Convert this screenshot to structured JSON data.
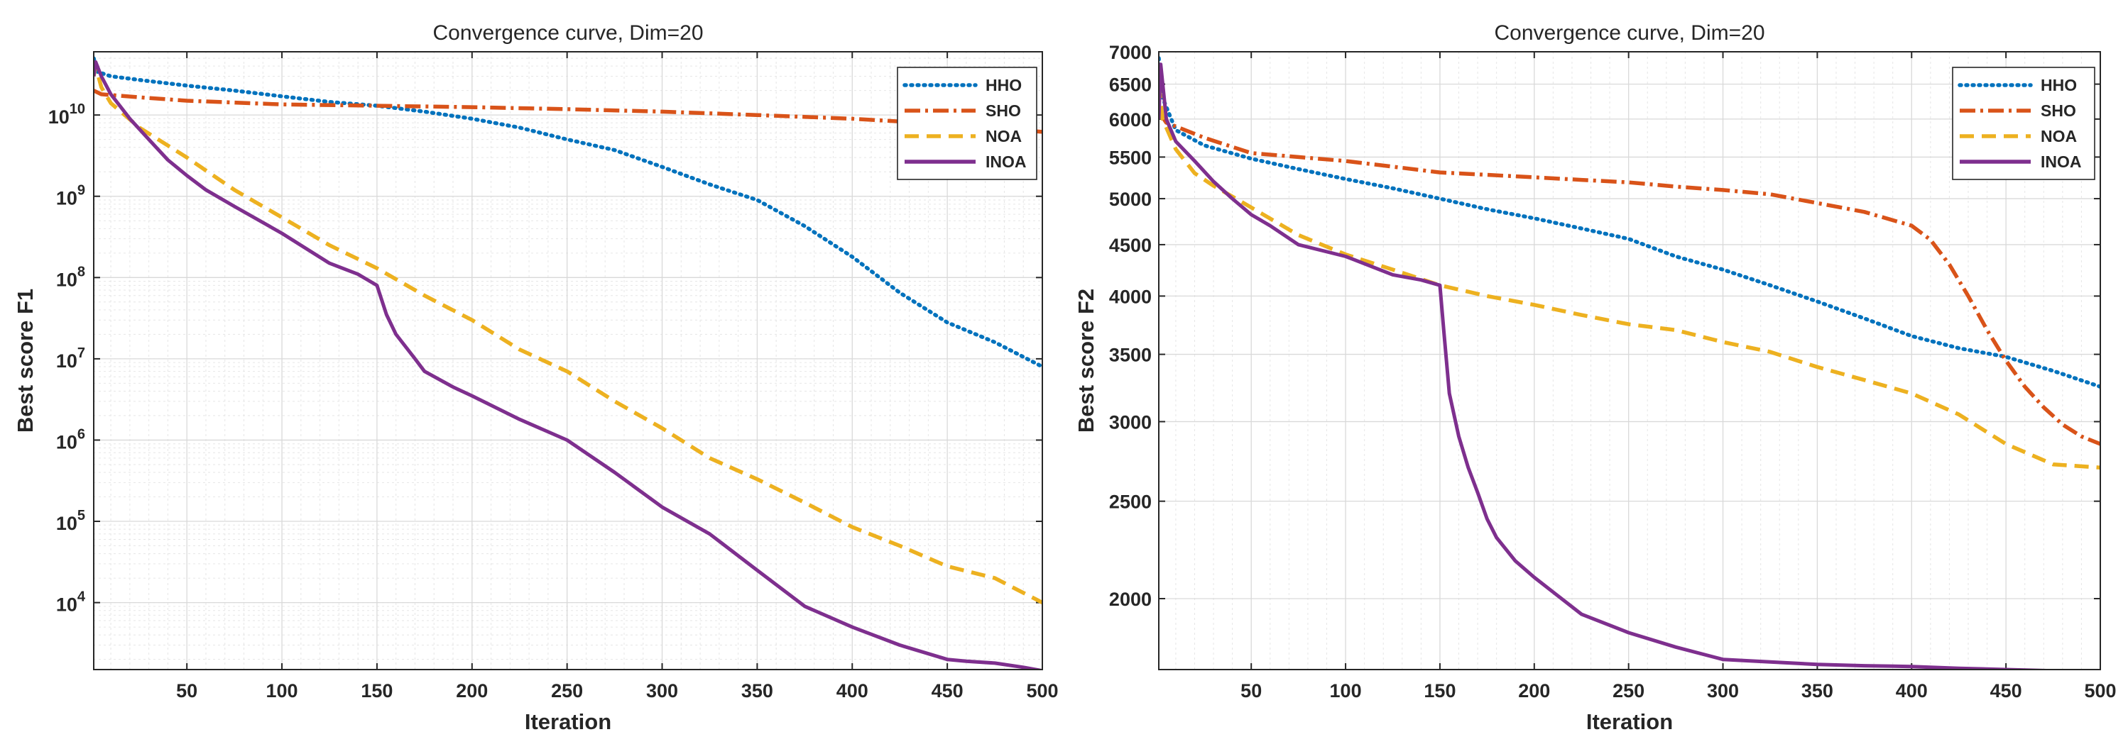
{
  "chart_data": [
    {
      "type": "line",
      "title": "Convergence curve, Dim=20",
      "xlabel": "Iteration",
      "ylabel": "Best score F1",
      "yscale": "log",
      "xlim": [
        1,
        500
      ],
      "ylim": [
        1500,
        60000000000
      ],
      "xticks": [
        50,
        100,
        150,
        200,
        250,
        300,
        350,
        400,
        450,
        500
      ],
      "xtick_labels": [
        "50",
        "100",
        "150",
        "200",
        "250",
        "300",
        "350",
        "400",
        "450",
        "500"
      ],
      "yticks": [
        10000,
        100000,
        1000000,
        10000000,
        100000000,
        1000000000,
        10000000000
      ],
      "ytick_labels": [
        {
          "base": "10",
          "exp": "4"
        },
        {
          "base": "10",
          "exp": "5"
        },
        {
          "base": "10",
          "exp": "6"
        },
        {
          "base": "10",
          "exp": "7"
        },
        {
          "base": "10",
          "exp": "8"
        },
        {
          "base": "10",
          "exp": "9"
        },
        {
          "base": "10",
          "exp": "10"
        }
      ],
      "grid": true,
      "legend_position": "top-right",
      "series": [
        {
          "name": "HHO",
          "color": "#0072BD",
          "style": "dotted",
          "x": [
            1,
            3,
            10,
            25,
            50,
            75,
            100,
            125,
            150,
            175,
            200,
            225,
            250,
            275,
            300,
            325,
            350,
            375,
            400,
            425,
            450,
            475,
            500
          ],
          "y": [
            50000000000,
            34000000000,
            30000000000,
            27000000000,
            23000000000,
            20000000000,
            17000000000,
            14500000000,
            13000000000,
            11000000000,
            9000000000,
            7000000000,
            5000000000,
            3700000000,
            2300000000,
            1400000000,
            900000000,
            430000000,
            180000000,
            65000000,
            28000000,
            16000000,
            8000000
          ]
        },
        {
          "name": "SHO",
          "color": "#D95319",
          "style": "dashdot",
          "x": [
            1,
            5,
            25,
            50,
            100,
            150,
            200,
            250,
            300,
            350,
            400,
            450,
            500
          ],
          "y": [
            20000000000,
            18000000000,
            16500000000,
            15000000000,
            13500000000,
            13000000000,
            12500000000,
            11800000000,
            11000000000,
            10000000000,
            9000000000,
            7700000000,
            6200000000
          ]
        },
        {
          "name": "NOA",
          "color": "#EDB120",
          "style": "dashed",
          "x": [
            1,
            2,
            5,
            10,
            25,
            50,
            75,
            100,
            125,
            150,
            175,
            200,
            225,
            250,
            275,
            300,
            325,
            350,
            375,
            400,
            425,
            450,
            475,
            500
          ],
          "y": [
            30000000000,
            40000000000,
            22000000000,
            14000000000,
            7000000000,
            3000000000,
            1200000000,
            550000000,
            250000000,
            130000000,
            60000000,
            30000000,
            13000000,
            7000000,
            3000000,
            1400000,
            600000,
            330000,
            170000,
            85000,
            50000,
            28000,
            20000,
            10000
          ]
        },
        {
          "name": "INOA",
          "color": "#7E2F8E",
          "style": "solid",
          "x": [
            1,
            2,
            5,
            10,
            20,
            30,
            40,
            50,
            60,
            75,
            100,
            125,
            140,
            150,
            155,
            160,
            170,
            175,
            190,
            200,
            225,
            250,
            275,
            300,
            325,
            350,
            375,
            400,
            425,
            450,
            460,
            475,
            490,
            500
          ],
          "y": [
            30000000000,
            45000000000,
            30000000000,
            18000000000,
            9000000000,
            5000000000,
            2800000000,
            1800000000,
            1200000000,
            750000000,
            350000000,
            150000000,
            110000000,
            80000000,
            35000000,
            20000000,
            10000000,
            7000000,
            4500000,
            3500000,
            1800000,
            1000000,
            400000,
            150000,
            70000,
            25000,
            9000,
            5000,
            3000,
            2000,
            1900,
            1800,
            1600,
            1450
          ]
        }
      ]
    },
    {
      "type": "line",
      "title": "Convergence curve, Dim=20",
      "xlabel": "Iteration",
      "ylabel": "Best score F2",
      "yscale": "log",
      "xlim": [
        1,
        500
      ],
      "ylim": [
        1700,
        7000
      ],
      "xticks": [
        50,
        100,
        150,
        200,
        250,
        300,
        350,
        400,
        450,
        500
      ],
      "xtick_labels": [
        "50",
        "100",
        "150",
        "200",
        "250",
        "300",
        "350",
        "400",
        "450",
        "500"
      ],
      "yticks": [
        2000,
        2500,
        3000,
        3500,
        4000,
        4500,
        5000,
        5500,
        6000,
        6500,
        7000
      ],
      "ytick_labels": [
        "2000",
        "2500",
        "3000",
        "3500",
        "4000",
        "4500",
        "5000",
        "5500",
        "6000",
        "6500",
        "7000"
      ],
      "grid": true,
      "legend_position": "top-right",
      "series": [
        {
          "name": "HHO",
          "color": "#0072BD",
          "style": "dotted",
          "x": [
            1,
            3,
            10,
            25,
            50,
            75,
            100,
            125,
            150,
            175,
            200,
            225,
            250,
            275,
            300,
            325,
            350,
            375,
            400,
            425,
            450,
            475,
            500
          ],
          "y": [
            6900,
            6300,
            5850,
            5650,
            5480,
            5350,
            5230,
            5120,
            5000,
            4880,
            4780,
            4670,
            4560,
            4380,
            4250,
            4100,
            3950,
            3800,
            3650,
            3550,
            3480,
            3370,
            3250
          ]
        },
        {
          "name": "SHO",
          "color": "#D95319",
          "style": "dashdot",
          "x": [
            1,
            5,
            10,
            25,
            50,
            75,
            100,
            125,
            150,
            175,
            200,
            225,
            250,
            275,
            300,
            325,
            350,
            375,
            400,
            410,
            420,
            430,
            440,
            450,
            460,
            470,
            480,
            490,
            500
          ],
          "y": [
            6100,
            5950,
            5900,
            5750,
            5550,
            5500,
            5450,
            5380,
            5310,
            5280,
            5250,
            5220,
            5190,
            5140,
            5100,
            5050,
            4950,
            4850,
            4700,
            4550,
            4300,
            4000,
            3700,
            3450,
            3250,
            3100,
            2980,
            2900,
            2850
          ]
        },
        {
          "name": "NOA",
          "color": "#EDB120",
          "style": "dashed",
          "x": [
            1,
            3,
            10,
            20,
            30,
            50,
            75,
            100,
            125,
            150,
            175,
            200,
            225,
            250,
            275,
            300,
            325,
            350,
            375,
            400,
            425,
            450,
            475,
            500
          ],
          "y": [
            6500,
            6000,
            5600,
            5300,
            5150,
            4900,
            4600,
            4400,
            4250,
            4100,
            4000,
            3920,
            3830,
            3750,
            3700,
            3600,
            3520,
            3400,
            3300,
            3200,
            3050,
            2850,
            2720,
            2700
          ]
        },
        {
          "name": "INOA",
          "color": "#7E2F8E",
          "style": "solid",
          "x": [
            1,
            2,
            5,
            10,
            20,
            30,
            40,
            50,
            60,
            75,
            100,
            125,
            140,
            150,
            152,
            155,
            160,
            165,
            170,
            175,
            180,
            190,
            200,
            210,
            225,
            250,
            275,
            300,
            325,
            350,
            375,
            400,
            425,
            450,
            475,
            500
          ],
          "y": [
            6000,
            6800,
            6000,
            5700,
            5450,
            5200,
            5000,
            4820,
            4700,
            4500,
            4380,
            4200,
            4150,
            4100,
            3700,
            3200,
            2900,
            2700,
            2550,
            2400,
            2300,
            2180,
            2100,
            2030,
            1930,
            1850,
            1790,
            1740,
            1730,
            1720,
            1715,
            1712,
            1705,
            1700,
            1695,
            1690
          ]
        }
      ]
    }
  ]
}
